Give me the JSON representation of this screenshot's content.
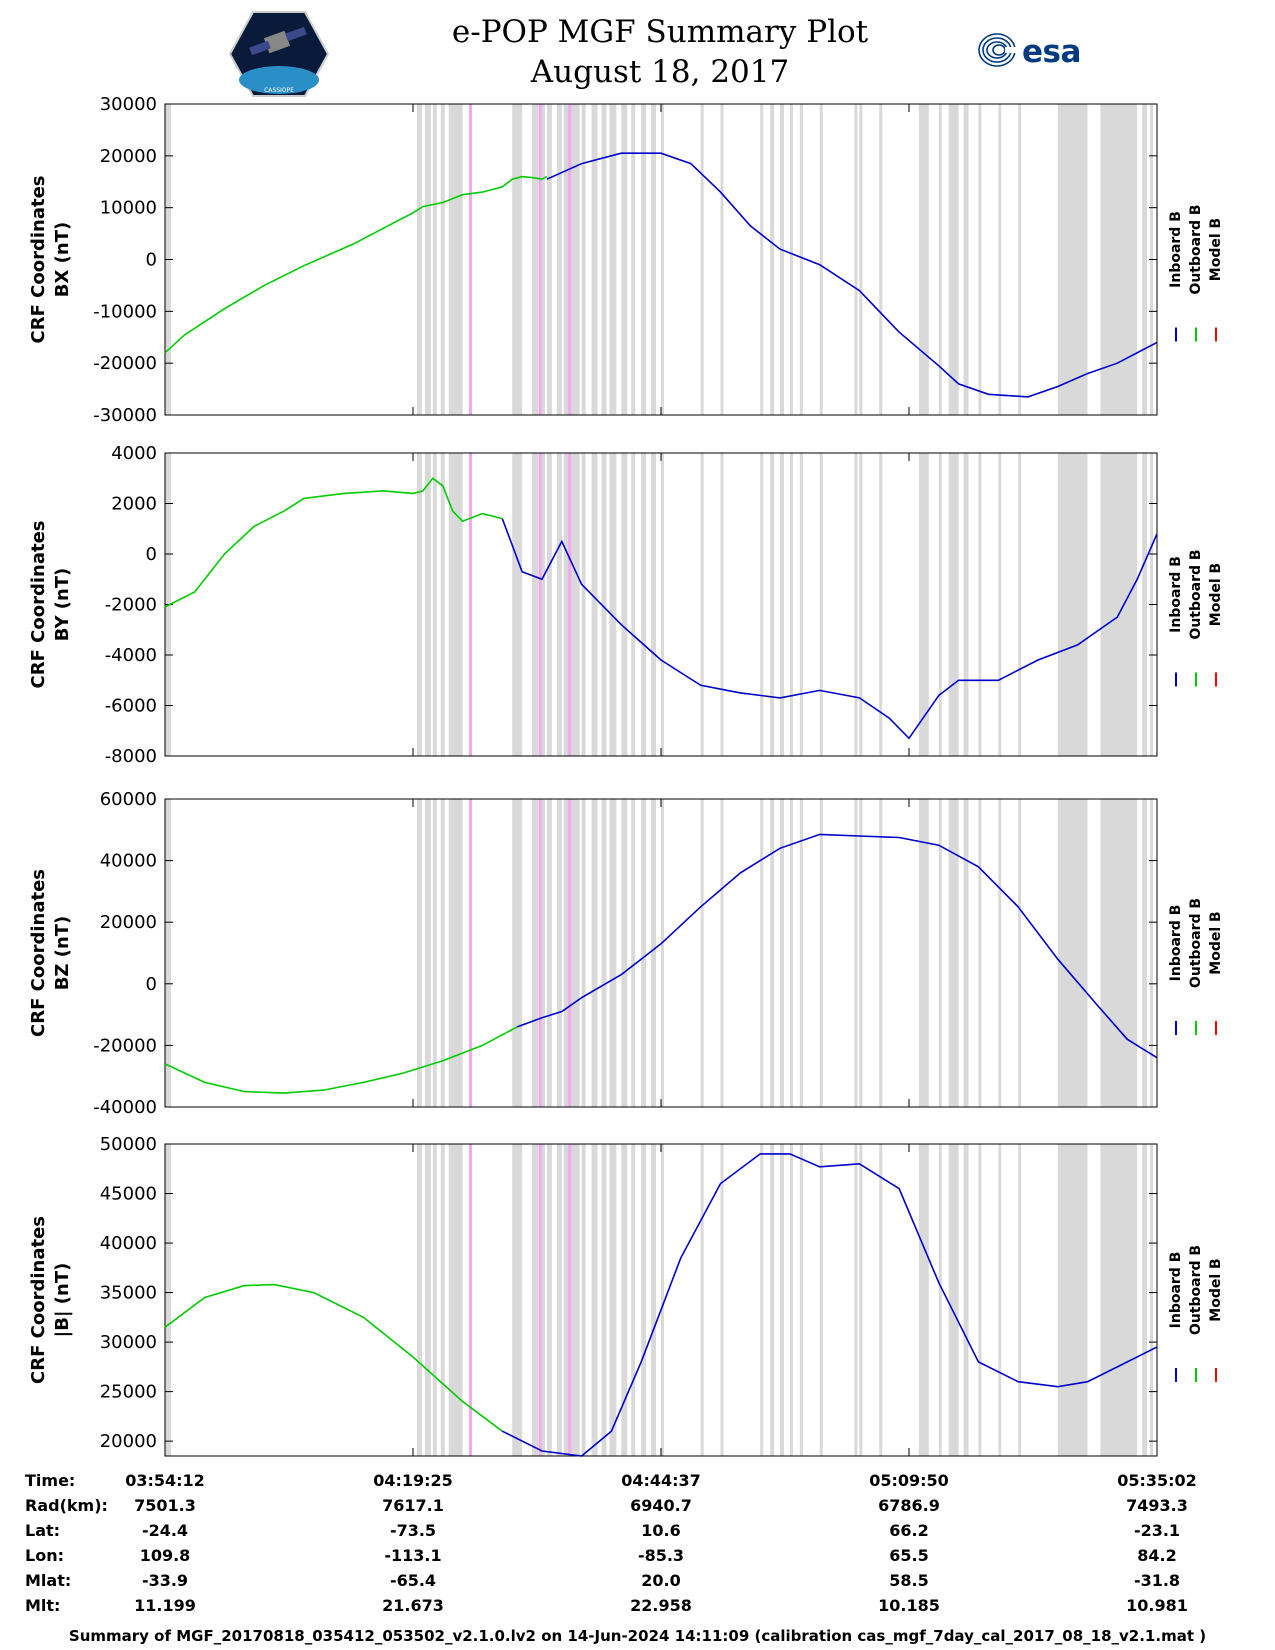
{
  "header": {
    "title_line1": "e-POP MGF Summary Plot",
    "title_line2": "August 18, 2017",
    "left_logo_text": "CASSIOPE",
    "right_logo_text": "esa"
  },
  "colors": {
    "inboard": "#0000cc",
    "outboard": "#00cc00",
    "model": "#ff0000",
    "gap": "#d9d9d9",
    "event": "#f2a8f2"
  },
  "chart_data": [
    {
      "type": "line",
      "ylabel_line1": "CRF Coordinates",
      "ylabel_line2": "BX (nT)",
      "ylim": [
        -30000,
        30000
      ],
      "yticks": [
        30000,
        20000,
        10000,
        0,
        -10000,
        -20000,
        -30000
      ],
      "legend": [
        "Inboard B",
        "Outboard B",
        "Model B"
      ],
      "series": [
        {
          "name": "Outboard B",
          "x": [
            0,
            0.02,
            0.06,
            0.1,
            0.14,
            0.19,
            0.25,
            0.26,
            0.28,
            0.3,
            0.32,
            0.34,
            0.35,
            0.36,
            0.37,
            0.38,
            0.385
          ],
          "y": [
            -18000,
            -14500,
            -9500,
            -5000,
            -1200,
            3000,
            9000,
            10200,
            11000,
            12500,
            13000,
            14000,
            15500,
            16000,
            15800,
            15500,
            16000
          ]
        },
        {
          "name": "Inboard B",
          "x": [
            0.385,
            0.42,
            0.46,
            0.5,
            0.53,
            0.56,
            0.59,
            0.62,
            0.66,
            0.7,
            0.74,
            0.78,
            0.8,
            0.83,
            0.87,
            0.9,
            0.93,
            0.96,
            1.0
          ],
          "y": [
            15500,
            18500,
            20500,
            20500,
            18500,
            13000,
            6500,
            2000,
            -1000,
            -6000,
            -14000,
            -20500,
            -24000,
            -26000,
            -26500,
            -24500,
            -22000,
            -20000,
            -16000
          ]
        }
      ]
    },
    {
      "type": "line",
      "ylabel_line1": "CRF Coordinates",
      "ylabel_line2": "BY (nT)",
      "ylim": [
        -8000,
        4000
      ],
      "yticks": [
        4000,
        2000,
        0,
        -2000,
        -4000,
        -6000,
        -8000
      ],
      "legend": [
        "Inboard B",
        "Outboard B",
        "Model B"
      ],
      "series": [
        {
          "name": "Outboard B",
          "x": [
            0,
            0.03,
            0.06,
            0.09,
            0.12,
            0.14,
            0.18,
            0.22,
            0.25,
            0.26,
            0.27,
            0.28,
            0.29,
            0.3,
            0.32,
            0.34
          ],
          "y": [
            -2100,
            -1500,
            0,
            1100,
            1700,
            2200,
            2400,
            2500,
            2400,
            2500,
            3000,
            2700,
            1700,
            1300,
            1600,
            1400
          ]
        },
        {
          "name": "Inboard B",
          "x": [
            0.34,
            0.36,
            0.38,
            0.4,
            0.42,
            0.46,
            0.5,
            0.54,
            0.58,
            0.62,
            0.66,
            0.7,
            0.73,
            0.75,
            0.78,
            0.8,
            0.84,
            0.88,
            0.92,
            0.96,
            0.98,
            1.0
          ],
          "y": [
            1400,
            -700,
            -1000,
            500,
            -1200,
            -2800,
            -4200,
            -5200,
            -5500,
            -5700,
            -5400,
            -5700,
            -6500,
            -7300,
            -5600,
            -5000,
            -5000,
            -4200,
            -3600,
            -2500,
            -1000,
            800
          ]
        }
      ]
    },
    {
      "type": "line",
      "ylabel_line1": "CRF Coordinates",
      "ylabel_line2": "BZ (nT)",
      "ylim": [
        -40000,
        60000
      ],
      "yticks": [
        60000,
        40000,
        20000,
        0,
        -20000,
        -40000
      ],
      "legend": [
        "Inboard B",
        "Outboard B",
        "Model B"
      ],
      "series": [
        {
          "name": "Outboard B",
          "x": [
            0,
            0.04,
            0.08,
            0.12,
            0.16,
            0.2,
            0.24,
            0.28,
            0.32,
            0.355
          ],
          "y": [
            -26000,
            -32000,
            -35000,
            -35500,
            -34500,
            -32000,
            -29000,
            -25000,
            -20000,
            -14000
          ]
        },
        {
          "name": "Inboard B",
          "x": [
            0.355,
            0.38,
            0.4,
            0.42,
            0.46,
            0.5,
            0.54,
            0.58,
            0.62,
            0.66,
            0.7,
            0.74,
            0.78,
            0.82,
            0.86,
            0.9,
            0.94,
            0.97,
            1.0
          ],
          "y": [
            -14000,
            -11000,
            -9000,
            -4500,
            3000,
            13000,
            25000,
            36000,
            44000,
            48500,
            48000,
            47500,
            45000,
            38000,
            25000,
            8000,
            -7000,
            -18000,
            -24000
          ]
        }
      ]
    },
    {
      "type": "line",
      "ylabel_line1": "CRF Coordinates",
      "ylabel_line2": "|B| (nT)",
      "ylim": [
        18500,
        50000
      ],
      "yticks": [
        50000,
        45000,
        40000,
        35000,
        30000,
        25000,
        20000
      ],
      "legend": [
        "Inboard B",
        "Outboard B",
        "Model B"
      ],
      "series": [
        {
          "name": "Outboard B",
          "x": [
            0,
            0.04,
            0.08,
            0.11,
            0.15,
            0.2,
            0.25,
            0.3,
            0.34
          ],
          "y": [
            31500,
            34500,
            35700,
            35800,
            35000,
            32500,
            28500,
            24000,
            21000
          ]
        },
        {
          "name": "Inboard B",
          "x": [
            0.34,
            0.38,
            0.42,
            0.45,
            0.48,
            0.52,
            0.56,
            0.6,
            0.63,
            0.66,
            0.7,
            0.74,
            0.78,
            0.82,
            0.86,
            0.9,
            0.93,
            0.96,
            1.0
          ],
          "y": [
            21000,
            19000,
            18500,
            21000,
            28000,
            38500,
            46000,
            49000,
            49000,
            47700,
            48000,
            45500,
            36000,
            28000,
            26000,
            25500,
            26000,
            27500,
            29500
          ]
        }
      ]
    }
  ],
  "table": {
    "labels": [
      "Time:",
      "Rad(km):",
      "Lat:",
      "Lon:",
      "Mlat:",
      "Mlt:"
    ],
    "columns": [
      [
        "03:54:12",
        "7501.3",
        "-24.4",
        "109.8",
        "-33.9",
        "11.199"
      ],
      [
        "04:19:25",
        "7617.1",
        "-73.5",
        "-113.1",
        "-65.4",
        "21.673"
      ],
      [
        "04:44:37",
        "6940.7",
        "10.6",
        "-85.3",
        "20.0",
        "22.958"
      ],
      [
        "05:09:50",
        "6786.9",
        "66.2",
        "65.5",
        "58.5",
        "10.185"
      ],
      [
        "05:35:02",
        "7493.3",
        "-23.1",
        "84.2",
        "-31.8",
        "10.981"
      ]
    ]
  },
  "footer": "Summary of MGF_20170818_035412_053502_v2.1.0.lv2 on 14-Jun-2024 14:11:09 (calibration cas_mgf_7day_cal_2017_08_18_v2.1.mat )"
}
